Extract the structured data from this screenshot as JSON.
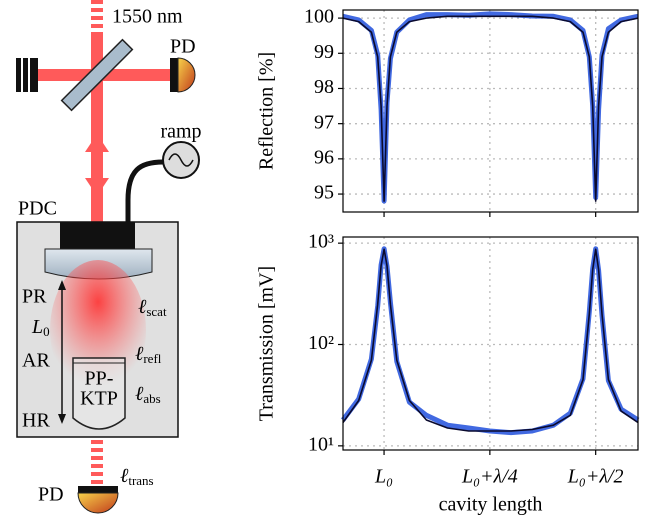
{
  "diagram": {
    "wavelength": "1550 nm",
    "pd_top": "PD",
    "ramp": "ramp",
    "pdc": "PDC",
    "pr": "PR",
    "length": {
      "symbol": "L",
      "sub": "0"
    },
    "ar": "AR",
    "hr": "HR",
    "crystal": [
      "PP-",
      "KTP"
    ],
    "scat": {
      "symbol": "ℓ",
      "sub": "scat"
    },
    "refl": {
      "symbol": "ℓ",
      "sub": "refl"
    },
    "abs": {
      "symbol": "ℓ",
      "sub": "abs"
    },
    "trans": {
      "symbol": "ℓ",
      "sub": "trans"
    },
    "pd_bottom": "PD"
  },
  "chart_data": [
    {
      "type": "line",
      "y_label": "Reflection [%]",
      "x": [
        -0.097,
        -0.06,
        -0.03,
        -0.015,
        -0.007,
        0,
        0.007,
        0.015,
        0.03,
        0.06,
        0.1,
        0.15,
        0.2,
        0.25,
        0.3,
        0.35,
        0.4,
        0.44,
        0.47,
        0.485,
        0.493,
        0.5,
        0.507,
        0.515,
        0.53,
        0.56,
        0.6
      ],
      "series": [
        {
          "color": "#4169e1",
          "values": [
            100.05,
            99.95,
            99.65,
            98.95,
            97.4,
            94.8,
            97.6,
            98.85,
            99.6,
            99.95,
            100.1,
            100.1,
            100.08,
            100.12,
            100.1,
            100.06,
            100.05,
            99.95,
            99.65,
            98.9,
            97.5,
            94.9,
            97.4,
            98.95,
            99.7,
            99.95,
            100.05
          ]
        },
        {
          "color": "#0a0a2e",
          "values": [
            100.0,
            99.9,
            99.6,
            98.9,
            97.5,
            94.8,
            97.5,
            98.9,
            99.6,
            99.9,
            100.0,
            100.05,
            100.05,
            100.05,
            100.05,
            100.05,
            100.0,
            99.9,
            99.6,
            98.9,
            97.5,
            94.8,
            97.5,
            98.9,
            99.6,
            99.9,
            100.0
          ]
        }
      ],
      "xlim": [
        -0.097,
        0.6
      ],
      "ylim": [
        94.49,
        100.23
      ],
      "xticks": [
        0,
        0.25,
        0.5
      ],
      "yticks": [
        95,
        96,
        97,
        98,
        99,
        100
      ],
      "show_xtick_labels": false,
      "grid": true,
      "log_y": false
    },
    {
      "type": "line",
      "y_label": "Transmission [mV]",
      "x_label": "cavity length",
      "x": [
        -0.097,
        -0.06,
        -0.03,
        -0.015,
        -0.007,
        0,
        0.007,
        0.015,
        0.03,
        0.06,
        0.1,
        0.15,
        0.2,
        0.25,
        0.3,
        0.35,
        0.4,
        0.44,
        0.47,
        0.485,
        0.493,
        0.5,
        0.507,
        0.515,
        0.53,
        0.56,
        0.6
      ],
      "series": [
        {
          "color": "#4169e1",
          "values": [
            18,
            29,
            72,
            240,
            610,
            880,
            590,
            260,
            68,
            27,
            20,
            16,
            15,
            14,
            13.5,
            14,
            16,
            21,
            46,
            210,
            560,
            880,
            540,
            195,
            44,
            23,
            18
          ]
        },
        {
          "color": "#0a0a2e",
          "values": [
            17,
            28,
            70,
            250,
            600,
            870,
            600,
            250,
            70,
            28,
            18,
            15,
            14,
            14,
            14,
            14.5,
            16,
            20,
            45,
            200,
            550,
            870,
            550,
            200,
            45,
            22,
            17
          ]
        }
      ],
      "xlim": [
        -0.097,
        0.6
      ],
      "ylim": [
        9.1,
        1150
      ],
      "xticks": [
        {
          "value": 0,
          "label": "L₀"
        },
        {
          "value": 0.25,
          "label": "L₀+λ/4"
        },
        {
          "value": 0.5,
          "label": "L₀+λ/2"
        }
      ],
      "yticks": [
        {
          "value": 10,
          "label": "10¹"
        },
        {
          "value": 100,
          "label": "10²"
        },
        {
          "value": 1000,
          "label": "10³"
        }
      ],
      "show_xtick_labels": true,
      "grid": true,
      "log_y": true
    }
  ]
}
